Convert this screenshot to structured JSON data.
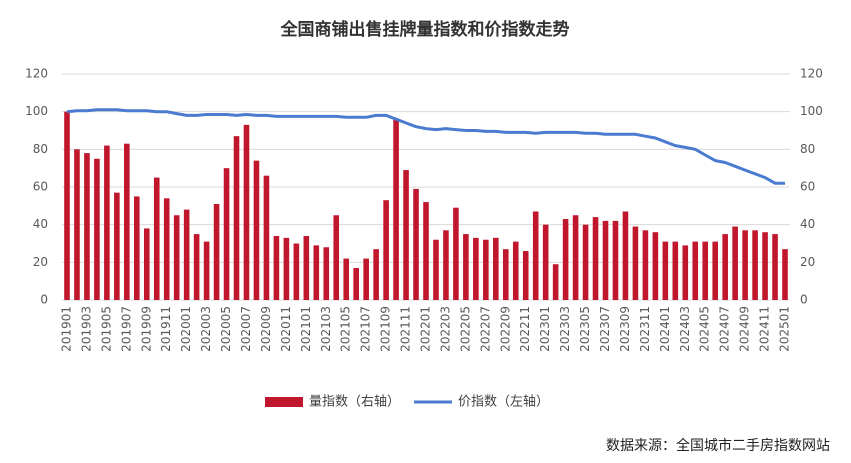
{
  "chart_data": {
    "type": "bar",
    "title": "全国商铺出售挂牌量指数和价指数走势",
    "source": "数据来源：全国城市二手房指数网站",
    "categories": [
      "201901",
      null,
      "201903",
      null,
      "201905",
      null,
      "201907",
      null,
      "201909",
      null,
      "201911",
      null,
      "202001",
      null,
      "202003",
      null,
      "202005",
      null,
      "202007",
      null,
      "202009",
      null,
      "202011",
      null,
      "202101",
      null,
      "202103",
      null,
      "202105",
      null,
      "202107",
      null,
      "202109",
      null,
      "202111",
      null,
      "202201",
      null,
      "202203",
      null,
      "202205",
      null,
      "202207",
      null,
      "202209",
      null,
      "202211",
      null,
      "202301",
      null,
      "202303",
      null,
      "202305",
      null,
      "202307",
      null,
      "202309",
      null,
      "202311",
      null,
      "202401",
      null,
      "202403",
      null,
      "202405",
      null,
      "202407",
      null,
      "202409",
      null,
      "202411",
      null,
      "202501"
    ],
    "series": [
      {
        "name": "量指数（右轴）",
        "type": "bar",
        "axis": "y2",
        "color": "#c0172d",
        "values": [
          100,
          80,
          78,
          75,
          82,
          57,
          83,
          55,
          38,
          65,
          54,
          45,
          48,
          35,
          31,
          51,
          70,
          87,
          93,
          74,
          66,
          34,
          33,
          30,
          34,
          29,
          28,
          45,
          22,
          17,
          22,
          27,
          53,
          96,
          69,
          59,
          52,
          32,
          37,
          49,
          35,
          33,
          32,
          33,
          27,
          31,
          26,
          47,
          40,
          19,
          43,
          45,
          40,
          44,
          42,
          42,
          47,
          39,
          37,
          36,
          31,
          31,
          29,
          31,
          31,
          31,
          35,
          39,
          37,
          37,
          36,
          35,
          27
        ]
      },
      {
        "name": "价指数（左轴）",
        "type": "line",
        "color": "#4a7bd0",
        "values": [
          100,
          100.5,
          100.5,
          101,
          101,
          101,
          100.5,
          100.5,
          100.5,
          100,
          100,
          99,
          98,
          98,
          98.5,
          98.5,
          98.5,
          98,
          98.5,
          98,
          98,
          97.5,
          97.5,
          97.5,
          97.5,
          97.5,
          97.5,
          97.5,
          97,
          97,
          97,
          98,
          98,
          96,
          94,
          92,
          91,
          90.5,
          91,
          90.5,
          90,
          90,
          89.5,
          89.5,
          89,
          89,
          89,
          88.5,
          89,
          89,
          89,
          89,
          88.5,
          88.5,
          88,
          88,
          88,
          88,
          87,
          86,
          84,
          82,
          81,
          80,
          77,
          74,
          73,
          71,
          69,
          67,
          65,
          62,
          62
        ]
      }
    ],
    "ylim": [
      0,
      120
    ],
    "yticks": [
      0,
      20,
      40,
      60,
      80,
      100,
      120
    ],
    "y2lim": [
      0,
      120
    ],
    "y2ticks": [
      0,
      20,
      40,
      60,
      80,
      100,
      120
    ],
    "grid": true,
    "legend": "bottom"
  }
}
